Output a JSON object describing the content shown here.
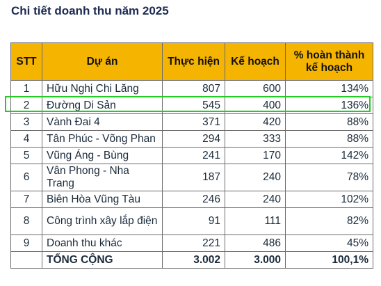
{
  "title": "Chi tiết doanh thu năm 2025",
  "table": {
    "headers": {
      "stt": "STT",
      "project": "Dự án",
      "actual": "Thực hiện",
      "plan": "Kế hoạch",
      "percent_line1": "% hoàn thành",
      "percent_line2": "kế hoạch"
    },
    "rows": [
      {
        "stt": "1",
        "project": "Hữu Nghị Chi Lăng",
        "actual": "807",
        "plan": "600",
        "percent": "134%"
      },
      {
        "stt": "2",
        "project": "Đường Di Sản",
        "actual": "545",
        "plan": "400",
        "percent": "136%"
      },
      {
        "stt": "3",
        "project": "Vành Đai 4",
        "actual": "371",
        "plan": "420",
        "percent": "88%"
      },
      {
        "stt": "4",
        "project": "Tân Phúc - Võng Phan",
        "actual": "294",
        "plan": "333",
        "percent": "88%"
      },
      {
        "stt": "5",
        "project": "Vũng Áng - Bùng",
        "actual": "241",
        "plan": "170",
        "percent": "142%"
      },
      {
        "stt": "6",
        "project": "Vân Phong - Nha Trang",
        "actual": "187",
        "plan": "240",
        "percent": "78%"
      },
      {
        "stt": "7",
        "project": "Biên Hòa Vũng Tàu",
        "actual": "246",
        "plan": "240",
        "percent": "102%"
      },
      {
        "stt": "8",
        "project": "Công trình xây lắp điện",
        "actual": "91",
        "plan": "111",
        "percent": "82%"
      },
      {
        "stt": "9",
        "project": "Doanh thu khác",
        "actual": "221",
        "plan": "486",
        "percent": "45%"
      }
    ],
    "total": {
      "label": "TỔNG CỘNG",
      "actual": "3.002",
      "plan": "3.000",
      "percent": "100,1%"
    }
  },
  "highlight_color": "#22cc22",
  "header_color": "#f5b400"
}
